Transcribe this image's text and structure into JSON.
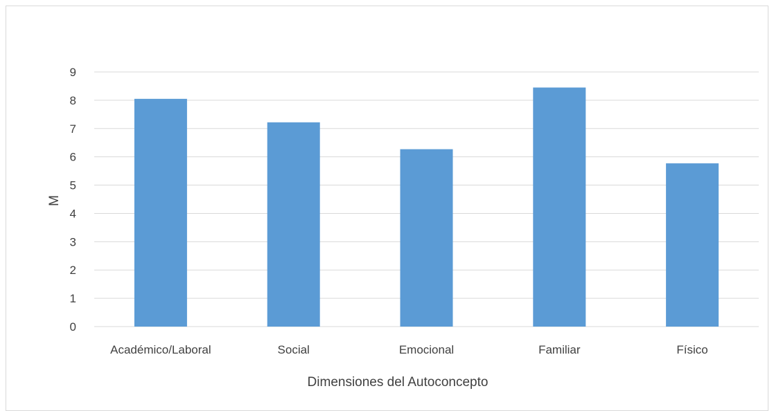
{
  "chart_data": {
    "type": "bar",
    "title": "",
    "xlabel": "Dimensiones del Autoconcepto",
    "ylabel": "M",
    "categories": [
      "Académico/Laboral",
      "Social",
      "Emocional",
      "Familiar",
      "Físico"
    ],
    "series": [
      {
        "values": [
          8.05,
          7.22,
          6.27,
          8.45,
          5.77
        ]
      }
    ],
    "ylim": [
      0,
      9
    ],
    "yticks": [
      0,
      1,
      2,
      3,
      4,
      5,
      6,
      7,
      8,
      9
    ],
    "grid": true,
    "legend": "none",
    "colors": {
      "bar": "#5b9bd5",
      "grid": "#d9d9d9",
      "text": "#404040",
      "border": "#d9d9d9"
    }
  }
}
